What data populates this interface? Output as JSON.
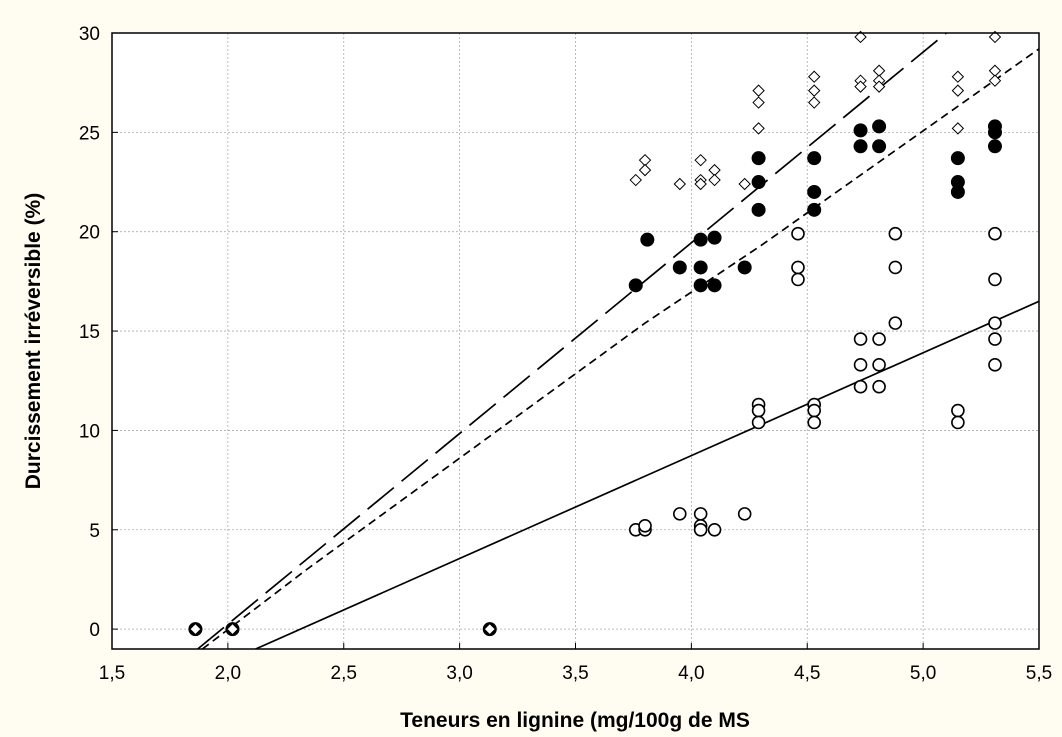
{
  "chart_data": {
    "type": "scatter",
    "title": "",
    "xlabel": "Teneurs en lignine (mg/100g de MS",
    "ylabel": "Durcissement irréversible (%)",
    "xlim": [
      1.5,
      5.5
    ],
    "ylim": [
      -1,
      30
    ],
    "x_ticks": [
      "1,5",
      "2,0",
      "2,5",
      "3,0",
      "3,5",
      "4,0",
      "4,5",
      "5,0",
      "5,5"
    ],
    "y_ticks": [
      "0",
      "5",
      "10",
      "15",
      "20",
      "25",
      "30"
    ],
    "grid": true,
    "legend": "none",
    "series": [
      {
        "marker": "open-circle",
        "points": [
          [
            1.86,
            0
          ],
          [
            2.02,
            0
          ],
          [
            3.13,
            0
          ],
          [
            3.76,
            5.0
          ],
          [
            3.8,
            5.0
          ],
          [
            3.8,
            5.2
          ],
          [
            3.95,
            5.8
          ],
          [
            4.04,
            5.8
          ],
          [
            4.04,
            5.2
          ],
          [
            4.04,
            5.0
          ],
          [
            4.1,
            5.0
          ],
          [
            4.23,
            5.8
          ],
          [
            4.29,
            11.3
          ],
          [
            4.29,
            11.0
          ],
          [
            4.29,
            10.4
          ],
          [
            4.46,
            19.9
          ],
          [
            4.46,
            18.2
          ],
          [
            4.46,
            17.6
          ],
          [
            4.53,
            11.3
          ],
          [
            4.53,
            11.0
          ],
          [
            4.53,
            10.4
          ],
          [
            4.73,
            14.6
          ],
          [
            4.73,
            13.3
          ],
          [
            4.73,
            12.2
          ],
          [
            4.81,
            14.6
          ],
          [
            4.81,
            13.3
          ],
          [
            4.81,
            12.2
          ],
          [
            4.88,
            19.9
          ],
          [
            4.88,
            18.2
          ],
          [
            4.88,
            15.4
          ],
          [
            5.15,
            11.0
          ],
          [
            5.15,
            10.4
          ],
          [
            5.31,
            19.9
          ],
          [
            5.31,
            17.6
          ],
          [
            5.31,
            15.4
          ],
          [
            5.31,
            14.6
          ],
          [
            5.31,
            13.3
          ]
        ]
      },
      {
        "marker": "filled-circle",
        "points": [
          [
            1.86,
            0
          ],
          [
            2.02,
            0
          ],
          [
            3.13,
            0
          ],
          [
            3.76,
            17.3
          ],
          [
            3.81,
            19.6
          ],
          [
            3.95,
            18.2
          ],
          [
            4.04,
            19.6
          ],
          [
            4.04,
            18.2
          ],
          [
            4.04,
            17.3
          ],
          [
            4.1,
            19.7
          ],
          [
            4.1,
            17.3
          ],
          [
            4.23,
            18.2
          ],
          [
            4.29,
            23.7
          ],
          [
            4.29,
            22.5
          ],
          [
            4.29,
            21.1
          ],
          [
            4.53,
            23.7
          ],
          [
            4.53,
            22.0
          ],
          [
            4.53,
            21.1
          ],
          [
            4.73,
            25.1
          ],
          [
            4.73,
            24.3
          ],
          [
            4.81,
            25.3
          ],
          [
            4.81,
            24.3
          ],
          [
            5.15,
            23.7
          ],
          [
            5.15,
            22.5
          ],
          [
            5.15,
            22.0
          ],
          [
            5.31,
            25.3
          ],
          [
            5.31,
            25.0
          ],
          [
            5.31,
            24.3
          ]
        ]
      },
      {
        "marker": "open-diamond",
        "points": [
          [
            1.86,
            0
          ],
          [
            2.02,
            0
          ],
          [
            3.13,
            0
          ],
          [
            3.76,
            22.6
          ],
          [
            3.8,
            23.6
          ],
          [
            3.8,
            23.1
          ],
          [
            3.95,
            22.4
          ],
          [
            4.04,
            23.6
          ],
          [
            4.04,
            22.6
          ],
          [
            4.04,
            22.4
          ],
          [
            4.1,
            23.1
          ],
          [
            4.1,
            22.6
          ],
          [
            4.23,
            22.4
          ],
          [
            4.29,
            27.1
          ],
          [
            4.29,
            26.5
          ],
          [
            4.29,
            25.2
          ],
          [
            4.53,
            27.8
          ],
          [
            4.53,
            27.1
          ],
          [
            4.53,
            26.5
          ],
          [
            4.73,
            29.8
          ],
          [
            4.73,
            27.6
          ],
          [
            4.73,
            27.3
          ],
          [
            4.81,
            28.1
          ],
          [
            4.81,
            27.6
          ],
          [
            4.81,
            27.3
          ],
          [
            5.15,
            27.8
          ],
          [
            5.15,
            27.1
          ],
          [
            5.15,
            25.2
          ],
          [
            5.31,
            29.8
          ],
          [
            5.31,
            28.1
          ],
          [
            5.31,
            27.6
          ]
        ]
      }
    ],
    "fit_lines": [
      {
        "style": "solid",
        "points": [
          [
            2.12,
            -1
          ],
          [
            5.5,
            16.5
          ]
        ]
      },
      {
        "style": "long-dash",
        "points": [
          [
            1.87,
            -1
          ],
          [
            5.1,
            30
          ]
        ]
      },
      {
        "style": "short-dash",
        "points": [
          [
            1.89,
            -1
          ],
          [
            2.34,
            3.0
          ],
          [
            3.0,
            8.6
          ],
          [
            3.8,
            15.4
          ],
          [
            4.3,
            19.3
          ],
          [
            5.5,
            29.2
          ]
        ]
      }
    ]
  }
}
